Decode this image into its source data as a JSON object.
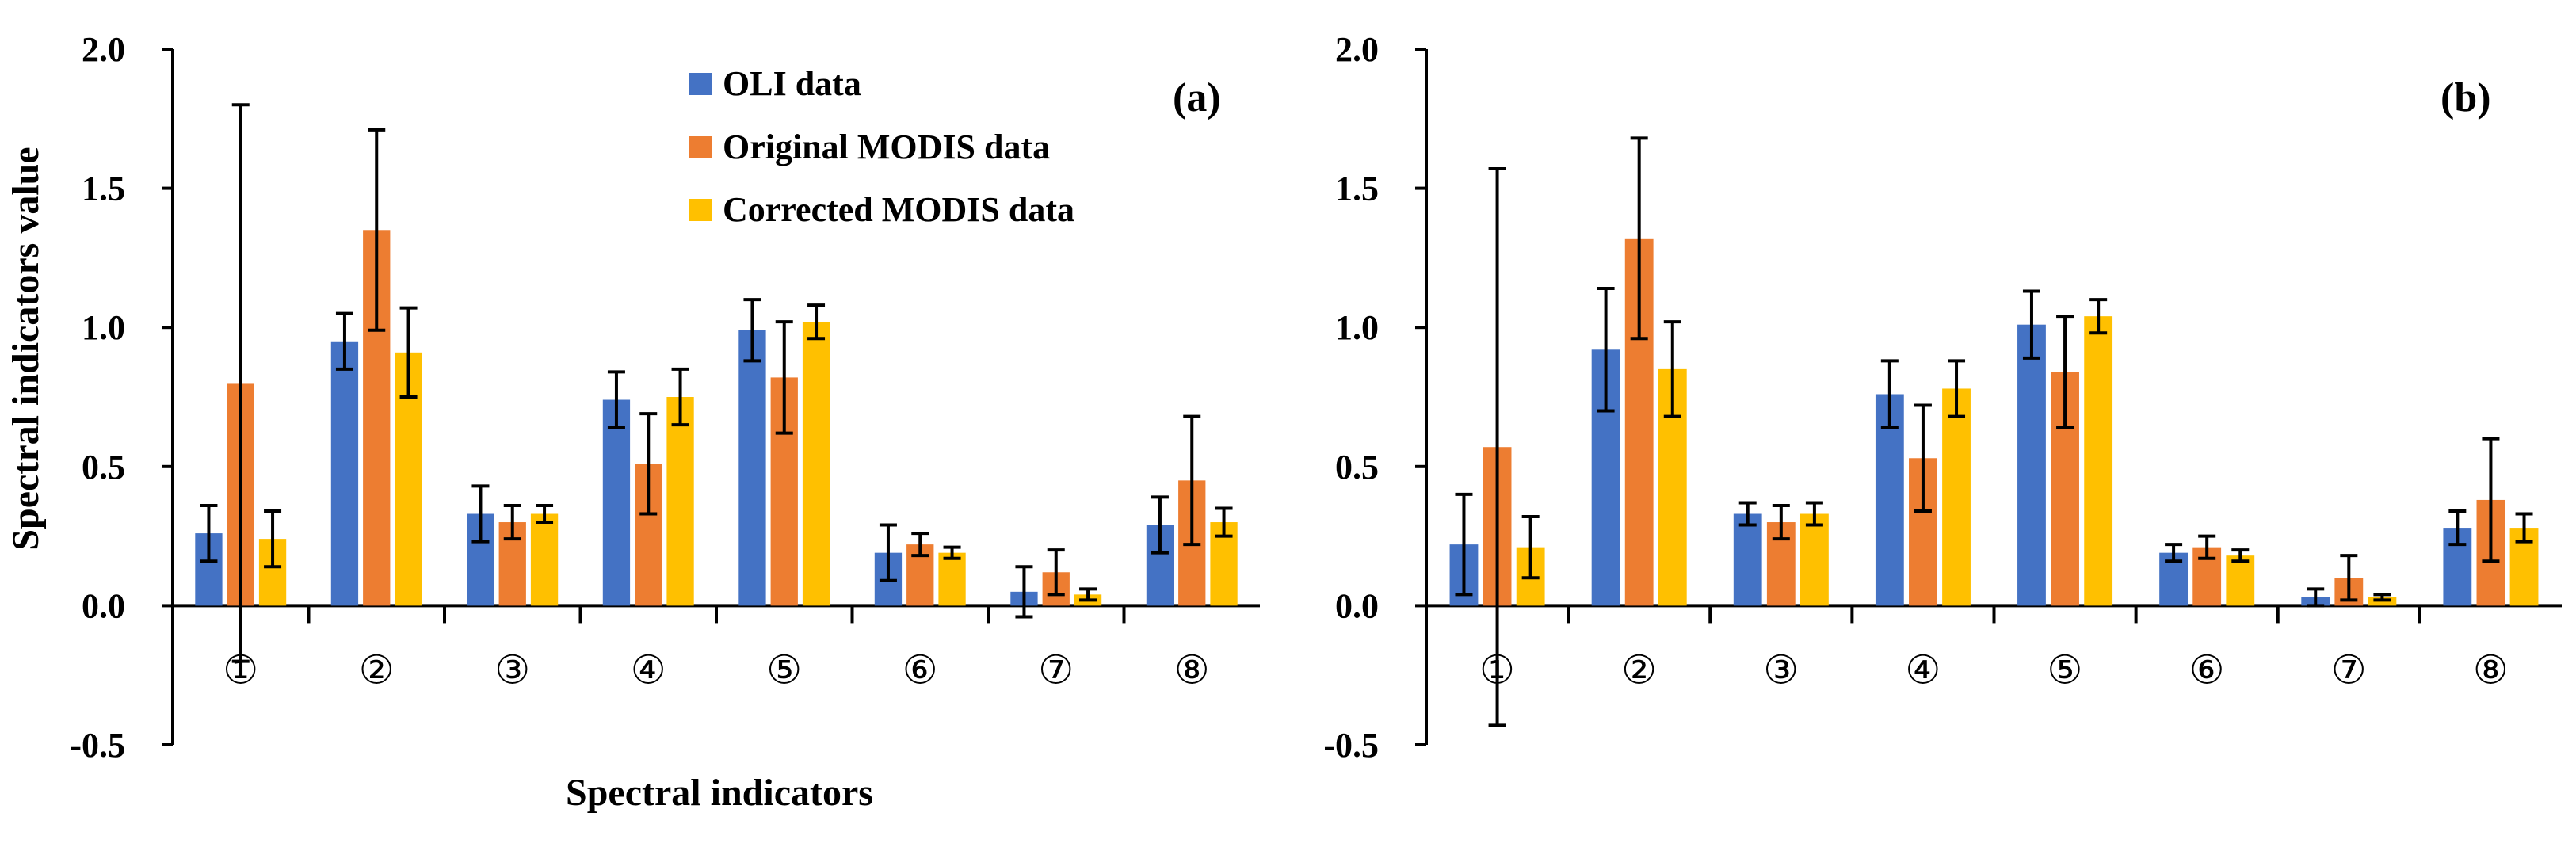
{
  "figure": {
    "series_legend": [
      "OLI data",
      "Original MODIS data",
      "Corrected MODIS data"
    ],
    "colors": {
      "OLI data": "#4472C4",
      "Original MODIS data": "#ED7D31",
      "Corrected MODIS data": "#FFC000",
      "axis": "#000000"
    }
  },
  "chart_data": [
    {
      "type": "bar",
      "panel_label": "(a)",
      "title": "",
      "xlabel": "Spectral indicators",
      "ylabel": "Spectral indicators  value",
      "ylim": [
        -0.5,
        2.0
      ],
      "yticks": [
        "2.0",
        "1.5",
        "1.0",
        "0.5",
        "0.0",
        "-0.5"
      ],
      "ytick_values": [
        2.0,
        1.5,
        1.0,
        0.5,
        0.0,
        -0.5
      ],
      "legend_position": "top-center",
      "categories": [
        "①",
        "②",
        "③",
        "④",
        "⑤",
        "⑥",
        "⑦",
        "⑧"
      ],
      "series": [
        {
          "name": "OLI data",
          "values": [
            0.26,
            0.95,
            0.33,
            0.74,
            0.99,
            0.19,
            0.05,
            0.29
          ],
          "errors": [
            0.1,
            0.1,
            0.1,
            0.1,
            0.11,
            0.1,
            0.09,
            0.1
          ]
        },
        {
          "name": "Original MODIS data",
          "values": [
            0.8,
            1.35,
            0.3,
            0.51,
            0.82,
            0.22,
            0.12,
            0.45
          ],
          "errors": [
            1.0,
            0.36,
            0.06,
            0.18,
            0.2,
            0.04,
            0.08,
            0.23
          ]
        },
        {
          "name": "Corrected MODIS data",
          "values": [
            0.24,
            0.91,
            0.33,
            0.75,
            1.02,
            0.19,
            0.04,
            0.3
          ],
          "errors": [
            0.1,
            0.16,
            0.03,
            0.1,
            0.06,
            0.02,
            0.02,
            0.05
          ]
        }
      ]
    },
    {
      "type": "bar",
      "panel_label": "(b)",
      "title": "",
      "xlabel": "",
      "ylabel": "",
      "ylim": [
        -0.5,
        2.0
      ],
      "yticks": [
        "2.0",
        "1.5",
        "1.0",
        "0.5",
        "0.0",
        "-0.5"
      ],
      "ytick_values": [
        2.0,
        1.5,
        1.0,
        0.5,
        0.0,
        -0.5
      ],
      "categories": [
        "①",
        "②",
        "③",
        "④",
        "⑤",
        "⑥",
        "⑦",
        "⑧"
      ],
      "series": [
        {
          "name": "OLI data",
          "values": [
            0.22,
            0.92,
            0.33,
            0.76,
            1.01,
            0.19,
            0.03,
            0.28
          ],
          "errors": [
            0.18,
            0.22,
            0.04,
            0.12,
            0.12,
            0.03,
            0.03,
            0.06
          ]
        },
        {
          "name": "Original MODIS data",
          "values": [
            0.57,
            1.32,
            0.3,
            0.53,
            0.84,
            0.21,
            0.1,
            0.38
          ],
          "errors": [
            1.0,
            0.36,
            0.06,
            0.19,
            0.2,
            0.04,
            0.08,
            0.22
          ]
        },
        {
          "name": "Corrected MODIS data",
          "values": [
            0.21,
            0.85,
            0.33,
            0.78,
            1.04,
            0.18,
            0.03,
            0.28
          ],
          "errors": [
            0.11,
            0.17,
            0.04,
            0.1,
            0.06,
            0.02,
            0.01,
            0.05
          ]
        }
      ]
    }
  ]
}
